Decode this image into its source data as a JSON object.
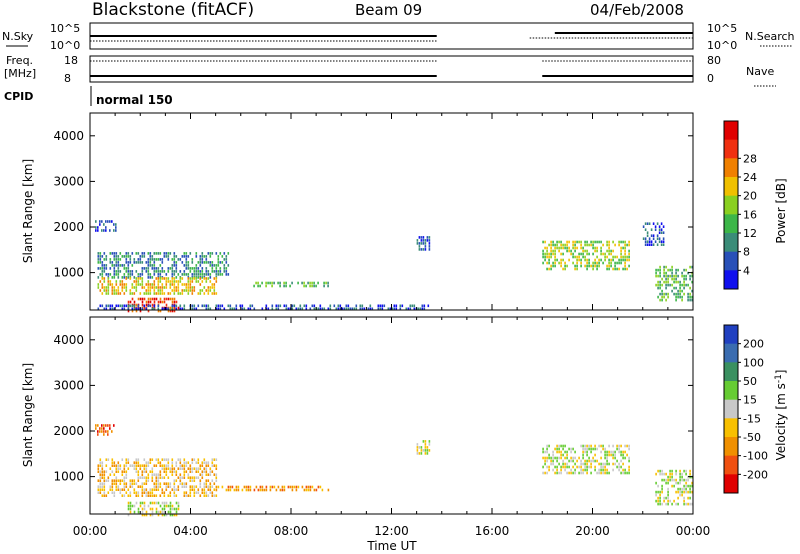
{
  "header": {
    "title": "Blackstone (fitACF)",
    "beam": "Beam 09",
    "date": "04/Feb/2008"
  },
  "panels": {
    "nsky_label": "N.Sky",
    "nsky_ticks": [
      "10^5",
      "10^0"
    ],
    "nsearch_label": "N.Search",
    "nsearch_ticks": [
      "10^5",
      "10^0"
    ],
    "freq_label": "Freq.",
    "freq_unit": "[MHz]",
    "freq_ticks": [
      "18",
      "8"
    ],
    "nave_label": "Nave",
    "nave_ticks": [
      "80",
      "0"
    ],
    "cpid_label": "CPID",
    "cpid_value": "normal 150"
  },
  "chart_data": [
    {
      "type": "heatmap",
      "name": "power",
      "xlabel": "Time UT",
      "ylabel": "Slant Range [km]",
      "x_range_hours": [
        0,
        24
      ],
      "x_ticks": [
        "00:00",
        "04:00",
        "08:00",
        "12:00",
        "16:00",
        "20:00",
        "00:00"
      ],
      "y_range": [
        180,
        4500
      ],
      "y_ticks": [
        1000,
        2000,
        3000,
        4000
      ],
      "colorbar": {
        "label": "Power [dB]",
        "ticks": [
          4,
          8,
          12,
          16,
          20,
          24,
          28
        ],
        "colors": [
          "#1010ee",
          "#2850b8",
          "#3a8c78",
          "#3cb648",
          "#8ad020",
          "#f0c000",
          "#f08000",
          "#f03010",
          "#e00000"
        ]
      },
      "echo_regions": [
        {
          "t": [
            0.3,
            5.5
          ],
          "r": [
            900,
            1450
          ],
          "level": 2
        },
        {
          "t": [
            0.3,
            5.0
          ],
          "r": [
            550,
            900
          ],
          "level": 5
        },
        {
          "t": [
            1.5,
            3.5
          ],
          "r": [
            180,
            450
          ],
          "level": 7
        },
        {
          "t": [
            0.3,
            13.5
          ],
          "r": [
            180,
            300
          ],
          "level": 1
        },
        {
          "t": [
            6.5,
            9.5
          ],
          "r": [
            680,
            800
          ],
          "level": 3
        },
        {
          "t": [
            0.2,
            1.0
          ],
          "r": [
            1900,
            2150
          ],
          "level": 1
        },
        {
          "t": [
            18.0,
            21.5
          ],
          "r": [
            1050,
            1700
          ],
          "level": 4
        },
        {
          "t": [
            22.5,
            24.0
          ],
          "r": [
            380,
            1150
          ],
          "level": 3
        },
        {
          "t": [
            13.0,
            13.5
          ],
          "r": [
            1500,
            1800
          ],
          "level": 1
        },
        {
          "t": [
            22.0,
            22.8
          ],
          "r": [
            1600,
            2100
          ],
          "level": 1
        }
      ]
    },
    {
      "type": "heatmap",
      "name": "velocity",
      "xlabel": "Time UT",
      "ylabel": "Slant Range [km]",
      "x_range_hours": [
        0,
        24
      ],
      "x_ticks": [
        "00:00",
        "04:00",
        "08:00",
        "12:00",
        "16:00",
        "20:00",
        "00:00"
      ],
      "y_range": [
        180,
        4500
      ],
      "y_ticks": [
        1000,
        2000,
        3000,
        4000
      ],
      "colorbar": {
        "label": "Velocity [m s-1]",
        "ticks": [
          "200",
          "100",
          "50",
          "15",
          "-15",
          "-50",
          "-100",
          "-200"
        ],
        "colors": [
          "#2040c0",
          "#3a6cb0",
          "#3a9060",
          "#66cc33",
          "#c8c8c8",
          "#f8c000",
          "#f09000",
          "#f05010",
          "#e00000"
        ]
      },
      "echo_regions": [
        {
          "t": [
            0.3,
            5.0
          ],
          "r": [
            550,
            1400
          ],
          "level": 5
        },
        {
          "t": [
            1.5,
            3.5
          ],
          "r": [
            180,
            450
          ],
          "level": 4
        },
        {
          "t": [
            5.0,
            9.5
          ],
          "r": [
            680,
            800
          ],
          "level": 6
        },
        {
          "t": [
            0.2,
            1.0
          ],
          "r": [
            1900,
            2150
          ],
          "level": 7
        },
        {
          "t": [
            18.0,
            21.5
          ],
          "r": [
            1050,
            1700
          ],
          "level": 4
        },
        {
          "t": [
            22.5,
            24.0
          ],
          "r": [
            380,
            1150
          ],
          "level": 4
        },
        {
          "t": [
            13.0,
            13.5
          ],
          "r": [
            1500,
            1800
          ],
          "level": 4
        }
      ]
    }
  ]
}
